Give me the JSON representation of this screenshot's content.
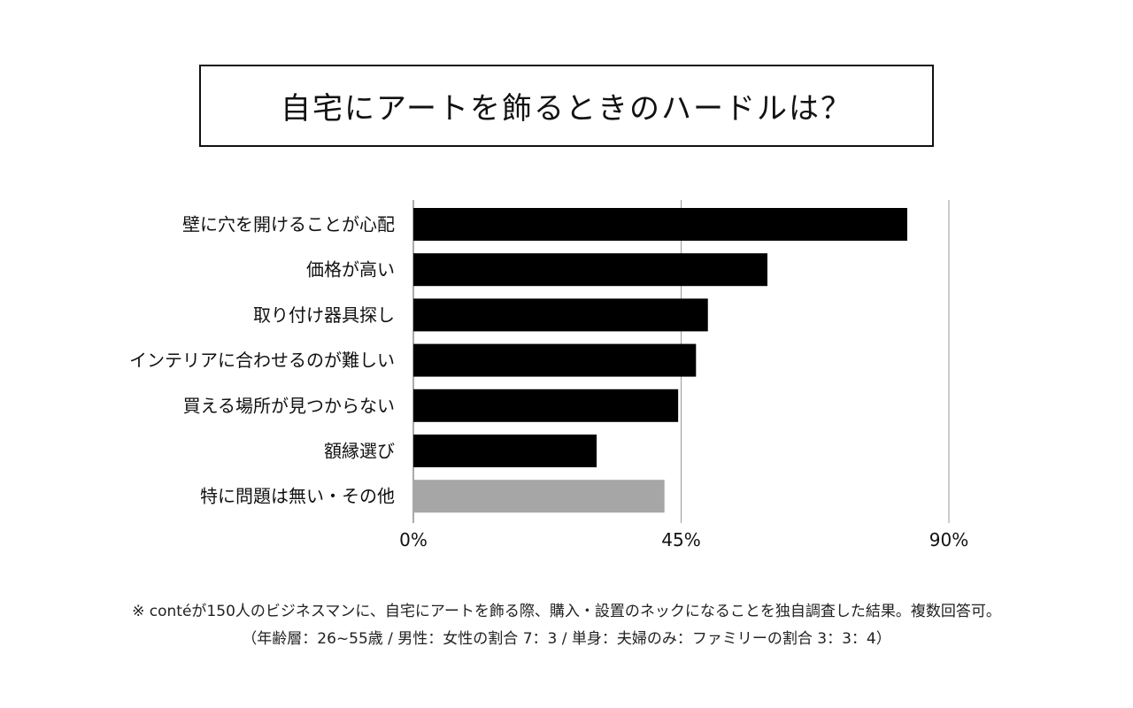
{
  "title": "自宅にアートを飾るときのハードルは？",
  "chart_data": {
    "type": "bar",
    "orientation": "horizontal",
    "title": "自宅にアートを飾るときのハードルは？",
    "categories": [
      "壁に穴を開けることが心配",
      "価格が高い",
      "取り付け器具探し",
      "インテリアに合わせるのが難しい",
      "買える場所が見つからない",
      "額縁選び",
      "特に問題は無い・その他"
    ],
    "values": [
      83,
      59.5,
      49.5,
      47.5,
      44.5,
      30.8,
      42.2
    ],
    "bar_colors": [
      "#000000",
      "#000000",
      "#000000",
      "#000000",
      "#000000",
      "#000000",
      "#a6a6a6"
    ],
    "xlim": [
      0,
      90
    ],
    "xticks": [
      0,
      45,
      90
    ],
    "xtick_labels": [
      "0%",
      "45%",
      "90%"
    ],
    "grid": "vertical",
    "xlabel": "",
    "ylabel": ""
  },
  "footnotes": {
    "line1": "※ contéが150人のビジネスマンに、自宅にアートを飾る際、購入・設置のネックになることを独自調査した結果。複数回答可。",
    "line2": "（年齢層：26~55歳 / 男性：女性の割合 7：3 / 単身：夫婦のみ：ファミリーの割合 3：3：4）"
  }
}
